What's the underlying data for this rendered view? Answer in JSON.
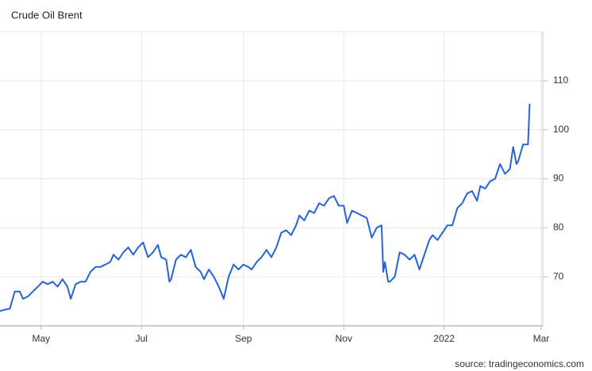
{
  "chart_data": {
    "type": "line",
    "title": "Crude Oil Brent",
    "source": "source: tradingeconomics.com",
    "x": [
      0,
      3,
      6,
      9,
      12,
      14,
      17,
      20,
      23,
      26,
      29,
      32,
      35,
      38,
      41,
      43,
      46,
      49,
      52,
      55,
      58,
      61,
      64,
      67,
      69,
      72,
      75,
      78,
      81,
      84,
      87,
      90,
      93,
      96,
      98,
      101,
      103,
      104,
      107,
      110,
      113,
      116,
      119,
      122,
      124,
      127,
      130,
      133,
      136,
      139,
      142,
      145,
      148,
      151,
      153,
      156,
      159,
      162,
      165,
      168,
      171,
      174,
      177,
      180,
      182,
      185,
      188,
      191,
      194,
      197,
      200,
      203,
      206,
      209,
      211,
      214,
      217,
      220,
      223,
      226,
      229,
      232,
      233,
      234,
      236,
      237,
      240,
      243,
      246,
      249,
      252,
      255,
      258,
      261,
      263,
      266,
      269,
      272,
      275,
      278,
      281,
      284,
      287,
      290,
      292,
      295,
      298,
      301,
      304,
      307,
      310,
      312,
      314,
      315,
      318,
      321,
      322
    ],
    "series": [
      {
        "name": "Crude Oil Brent",
        "color": "#2563d9",
        "values": [
          63,
          63.3,
          63.5,
          67,
          67,
          65.5,
          66,
          67,
          68,
          69,
          68.5,
          69,
          68,
          69.5,
          68,
          65.5,
          68.5,
          69,
          69,
          71,
          72,
          72,
          72.5,
          73,
          74.5,
          73.5,
          75,
          76,
          74.5,
          76,
          77,
          74,
          75,
          76.5,
          74,
          73.5,
          69,
          69.5,
          73.5,
          74.5,
          74,
          75.5,
          72,
          71,
          69.5,
          71.5,
          70,
          68,
          65.5,
          70,
          72.5,
          71.5,
          72.5,
          72,
          71.5,
          73,
          74,
          75.5,
          74,
          76,
          79,
          79.5,
          78.5,
          80.5,
          82.5,
          81.5,
          83.5,
          83,
          85,
          84.5,
          86,
          86.5,
          84.5,
          84.5,
          81,
          83.5,
          83,
          82.5,
          82,
          78,
          80,
          80.5,
          71,
          73,
          69,
          69,
          70,
          75,
          74.5,
          73.5,
          74.5,
          71.5,
          74.5,
          77.5,
          78.5,
          77.5,
          79,
          80.5,
          80.5,
          84,
          85,
          87,
          87.5,
          85.5,
          88.5,
          88,
          89.5,
          90,
          93,
          91,
          92,
          96.5,
          93,
          93.5,
          97,
          97,
          105.3
        ]
      }
    ],
    "xlim": [
      0,
      330
    ],
    "xticks": [
      {
        "value": 25,
        "label": "May"
      },
      {
        "value": 86,
        "label": "Jul"
      },
      {
        "value": 148,
        "label": "Sep"
      },
      {
        "value": 209,
        "label": "Nov"
      },
      {
        "value": 270,
        "label": "2022"
      },
      {
        "value": 329,
        "label": "Mar"
      }
    ],
    "ylim": [
      60,
      120
    ],
    "yticks": [
      70,
      80,
      90,
      100,
      110
    ],
    "grid": true
  }
}
